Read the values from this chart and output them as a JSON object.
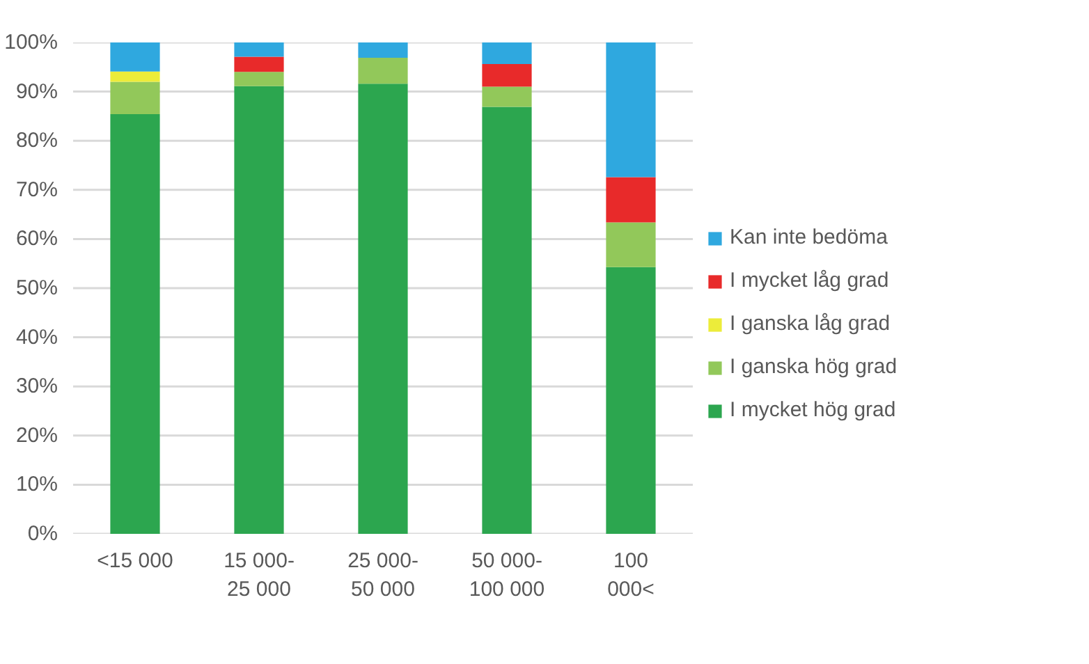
{
  "chart_data": {
    "type": "bar",
    "stacked": true,
    "categories": [
      "<15 000",
      "15 000-\n25 000",
      "25 000-\n50 000",
      "50 000-\n100 000",
      "100\n000<"
    ],
    "series": [
      {
        "name": "I mycket hög grad",
        "color": "#2ca64f",
        "values": [
          85.4,
          91.1,
          91.6,
          86.9,
          54.3
        ]
      },
      {
        "name": "I ganska hög grad",
        "color": "#92c85a",
        "values": [
          6.6,
          2.9,
          5.3,
          4.1,
          9.1
        ]
      },
      {
        "name": "I ganska låg grad",
        "color": "#ecec3a",
        "values": [
          2.1,
          0,
          0,
          0,
          0
        ]
      },
      {
        "name": "I mycket låg grad",
        "color": "#e82a2a",
        "values": [
          0,
          3.1,
          0,
          4.6,
          9.2
        ]
      },
      {
        "name": "Kan inte bedöma",
        "color": "#2fa8df",
        "values": [
          5.9,
          2.9,
          3.1,
          4.4,
          27.4
        ]
      }
    ],
    "ylim": [
      0,
      100
    ],
    "yticks": [
      {
        "value": 0,
        "label": "0%"
      },
      {
        "value": 10,
        "label": "10%"
      },
      {
        "value": 20,
        "label": "20%"
      },
      {
        "value": 30,
        "label": "30%"
      },
      {
        "value": 40,
        "label": "40%"
      },
      {
        "value": 50,
        "label": "50%"
      },
      {
        "value": 60,
        "label": "60%"
      },
      {
        "value": 70,
        "label": "70%"
      },
      {
        "value": 80,
        "label": "80%"
      },
      {
        "value": 90,
        "label": "90%"
      },
      {
        "value": 100,
        "label": "100%"
      }
    ],
    "grid": "y",
    "legend": "right"
  }
}
